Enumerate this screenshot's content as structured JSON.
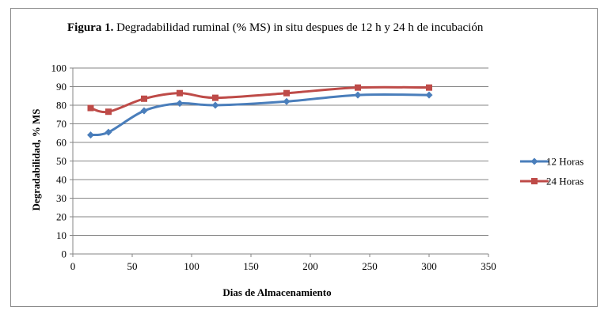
{
  "chart_data": {
    "type": "line",
    "title_bold": "Figura 1.",
    "title_rest": "Degradabilidad ruminal (% MS) in situ despues de 12 h y 24 h de incubación",
    "xlabel": "Dias de Almacenamiento",
    "ylabel": "Degradabilidad, % MS",
    "xlim": [
      0,
      350
    ],
    "ylim": [
      0,
      100
    ],
    "x_ticks": [
      0,
      50,
      100,
      150,
      200,
      250,
      300,
      350
    ],
    "y_ticks": [
      0,
      10,
      20,
      30,
      40,
      50,
      60,
      70,
      80,
      90,
      100
    ],
    "grid": "horizontal",
    "legend_position": "right",
    "series": [
      {
        "name": "12 Horas",
        "color": "#4a7ebb",
        "marker": "diamond",
        "x": [
          15,
          30,
          60,
          90,
          120,
          180,
          240,
          300
        ],
        "y": [
          64,
          65.5,
          77,
          81,
          80,
          82,
          85.5,
          85.5
        ]
      },
      {
        "name": "24 Horas",
        "color": "#be4b48",
        "marker": "square",
        "x": [
          15,
          30,
          60,
          90,
          120,
          180,
          240,
          300
        ],
        "y": [
          78.5,
          76.5,
          83.5,
          86.5,
          84,
          86.5,
          89.5,
          89.5
        ]
      }
    ]
  }
}
